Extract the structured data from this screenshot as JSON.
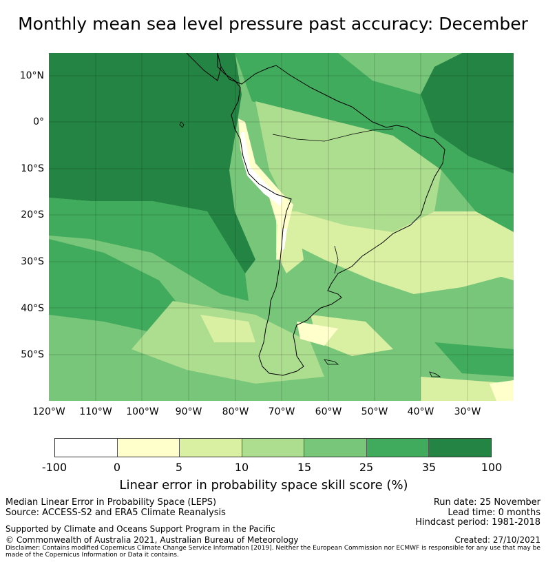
{
  "title": "Monthly mean sea level pressure past accuracy: December",
  "map": {
    "lat_labels": [
      "10°N",
      "0°",
      "10°S",
      "20°S",
      "30°S",
      "40°S",
      "50°S"
    ],
    "lon_labels": [
      "120°W",
      "110°W",
      "100°W",
      "90°W",
      "80°W",
      "70°W",
      "60°W",
      "50°W",
      "40°W",
      "30°W"
    ]
  },
  "colorbar": {
    "tick_labels": [
      "-100",
      "0",
      "5",
      "10",
      "15",
      "25",
      "35",
      "100"
    ],
    "colors": [
      "#ffffff",
      "#ffffcc",
      "#d9f0a3",
      "#addd8e",
      "#78c679",
      "#41ab5d",
      "#238443"
    ],
    "label": "Linear error in probability space skill score (%)"
  },
  "info": {
    "method": "Median Linear Error in Probability Space (LEPS)",
    "source": "Source: ACCESS-S2 and ERA5 Climate Reanalysis",
    "run_date": "Run date: 25 November",
    "lead_time": "Lead time: 0 months",
    "hindcast": "Hindcast period: 1981-2018",
    "support": "Supported by Climate and Oceans Support Program in the Pacific",
    "copyright": "© Commonwealth of Australia 2021, Australian Bureau of Meteorology",
    "created": "Created: 27/10/2021",
    "disclaimer": "Disclaimer: Contains modified Copernicus Climate Change Service Information [2019]. Neither the European Commission nor ECMWF is responsible for any use that may be made of the Copernicus Information or Data it contains."
  }
}
